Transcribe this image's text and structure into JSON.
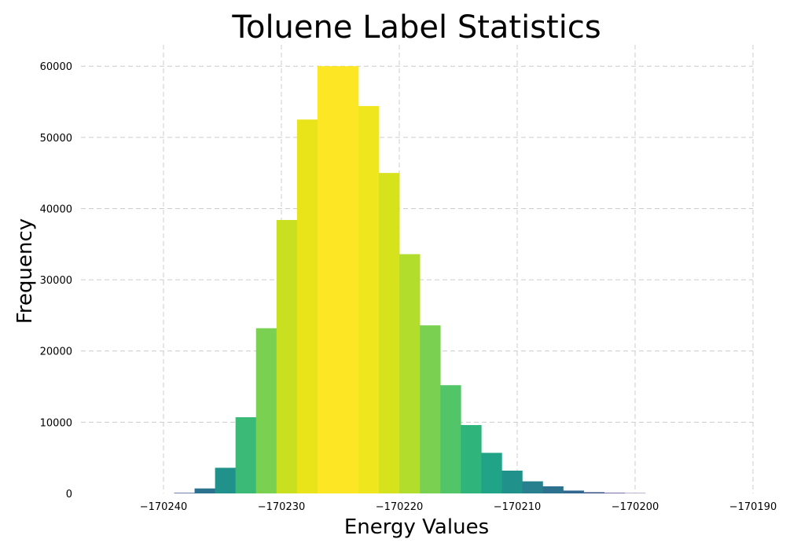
{
  "chart_data": {
    "type": "bar",
    "title": "Toluene Label Statistics",
    "xlabel": "Energy Values",
    "ylabel": "Frequency",
    "xlim": [
      -170247,
      -170190
    ],
    "ylim": [
      0,
      63000
    ],
    "xticks": [
      -170240,
      -170230,
      -170220,
      -170210,
      -170200,
      -170190
    ],
    "xtick_labels": [
      "−170240",
      "−170230",
      "−170220",
      "−170210",
      "−170200",
      "−170190"
    ],
    "yticks": [
      0,
      10000,
      20000,
      30000,
      40000,
      50000,
      60000
    ],
    "ytick_labels": [
      "0",
      "10000",
      "20000",
      "30000",
      "40000",
      "50000",
      "60000"
    ],
    "grid": true,
    "bin_start": -170239.1,
    "bin_width": 1.7371,
    "bins": [
      {
        "value": 80,
        "color": "#3b528b"
      },
      {
        "value": 700,
        "color": "#2c728e"
      },
      {
        "value": 3600,
        "color": "#21918c"
      },
      {
        "value": 10700,
        "color": "#3aba76"
      },
      {
        "value": 23200,
        "color": "#7ad151"
      },
      {
        "value": 38400,
        "color": "#c8e020"
      },
      {
        "value": 52500,
        "color": "#e8e419"
      },
      {
        "value": 60000,
        "color": "#fde725"
      },
      {
        "value": 60000,
        "color": "#fde725"
      },
      {
        "value": 54400,
        "color": "#f0e61e"
      },
      {
        "value": 45000,
        "color": "#d6e21c"
      },
      {
        "value": 33600,
        "color": "#b2dd2d"
      },
      {
        "value": 23600,
        "color": "#7ad151"
      },
      {
        "value": 15200,
        "color": "#52c569"
      },
      {
        "value": 9600,
        "color": "#2fb47c"
      },
      {
        "value": 5700,
        "color": "#20a386"
      },
      {
        "value": 3200,
        "color": "#21918c"
      },
      {
        "value": 1700,
        "color": "#28808e"
      },
      {
        "value": 1000,
        "color": "#2c728e"
      },
      {
        "value": 400,
        "color": "#31668e"
      },
      {
        "value": 170,
        "color": "#3b528b"
      },
      {
        "value": 80,
        "color": "#443983"
      },
      {
        "value": 40,
        "color": "#472d7b"
      }
    ]
  }
}
